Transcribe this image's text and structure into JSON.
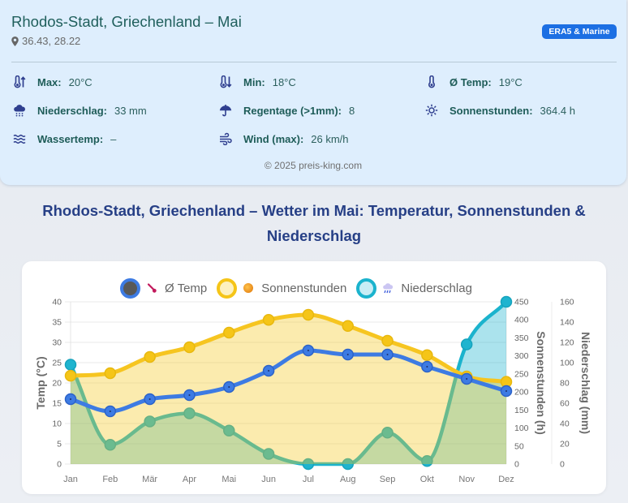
{
  "header": {
    "title": "Rhodos-Stadt, Griechenland – Mai",
    "coords": "36.43, 28.22",
    "badge": "ERA5 & Marine",
    "footer": "© 2025 preis-king.com"
  },
  "stats": [
    {
      "icon": "thermometer-up-icon",
      "label": "Max:",
      "value": "20°C"
    },
    {
      "icon": "thermometer-down-icon",
      "label": "Min:",
      "value": "18°C"
    },
    {
      "icon": "thermometer-icon",
      "label": "Ø Temp:",
      "value": "19°C"
    },
    {
      "icon": "cloud-rain-icon",
      "label": "Niederschlag:",
      "value": "33 mm"
    },
    {
      "icon": "umbrella-icon",
      "label": "Regentage (>1mm):",
      "value": "8"
    },
    {
      "icon": "sun-icon",
      "label": "Sonnenstunden:",
      "value": "364.4 h"
    },
    {
      "icon": "water-waves-icon",
      "label": "Wassertemp:",
      "value": "–"
    },
    {
      "icon": "wind-icon",
      "label": "Wind (max):",
      "value": "26 km/h"
    }
  ],
  "colors": {
    "badge": "#1c6fe3",
    "temp": "#3d7be3",
    "sun": "#f5c518",
    "rain": "#1bb3cd",
    "heading": "#263f86"
  },
  "chart_data": {
    "type": "line",
    "title_lines": [
      "Rhodos-Stadt, Griechenland – Wetter im Mai: Temperatur, Sonnenstunden &",
      "Niederschlag"
    ],
    "categories": [
      "Jan",
      "Feb",
      "Mär",
      "Apr",
      "Mai",
      "Jun",
      "Jul",
      "Aug",
      "Sep",
      "Okt",
      "Nov",
      "Dez"
    ],
    "series": [
      {
        "name": "Ø Temp",
        "axis": "temp",
        "color": "#3d7be3",
        "fill": false,
        "legend_icon": "thermometer-icon",
        "values": [
          16,
          13,
          16,
          17,
          19,
          23,
          28,
          27,
          27,
          24,
          21,
          18
        ]
      },
      {
        "name": "Sonnenstunden",
        "axis": "sun",
        "color": "#f5c518",
        "fill": true,
        "legend_icon": "sun-icon",
        "values": [
          245,
          252,
          297,
          324,
          364.4,
          400,
          414,
          383,
          342,
          302,
          243,
          228
        ]
      },
      {
        "name": "Niederschlag",
        "axis": "rain",
        "color": "#1bb3cd",
        "fill": true,
        "legend_icon": "cloud-rain-icon",
        "values": [
          98,
          19,
          42,
          50,
          33,
          10,
          0,
          0,
          31,
          3,
          118,
          160
        ]
      }
    ],
    "axes": [
      {
        "id": "temp",
        "position": "left",
        "label": "Temp (°C)",
        "min": 0,
        "max": 40,
        "ticks": [
          0,
          5,
          10,
          15,
          20,
          25,
          30,
          35,
          40
        ]
      },
      {
        "id": "sun",
        "position": "right",
        "label": "Sonnenstunden (h)",
        "min": 0,
        "max": 450,
        "ticks": [
          0,
          50,
          100,
          150,
          200,
          250,
          300,
          350,
          400,
          450
        ]
      },
      {
        "id": "rain",
        "position": "right",
        "label": "Niederschlag (mm)",
        "min": 0,
        "max": 160,
        "ticks": [
          0,
          20,
          40,
          60,
          80,
          100,
          120,
          140,
          160
        ]
      }
    ],
    "xlabel": "",
    "grid": true,
    "legend_position": "top"
  }
}
